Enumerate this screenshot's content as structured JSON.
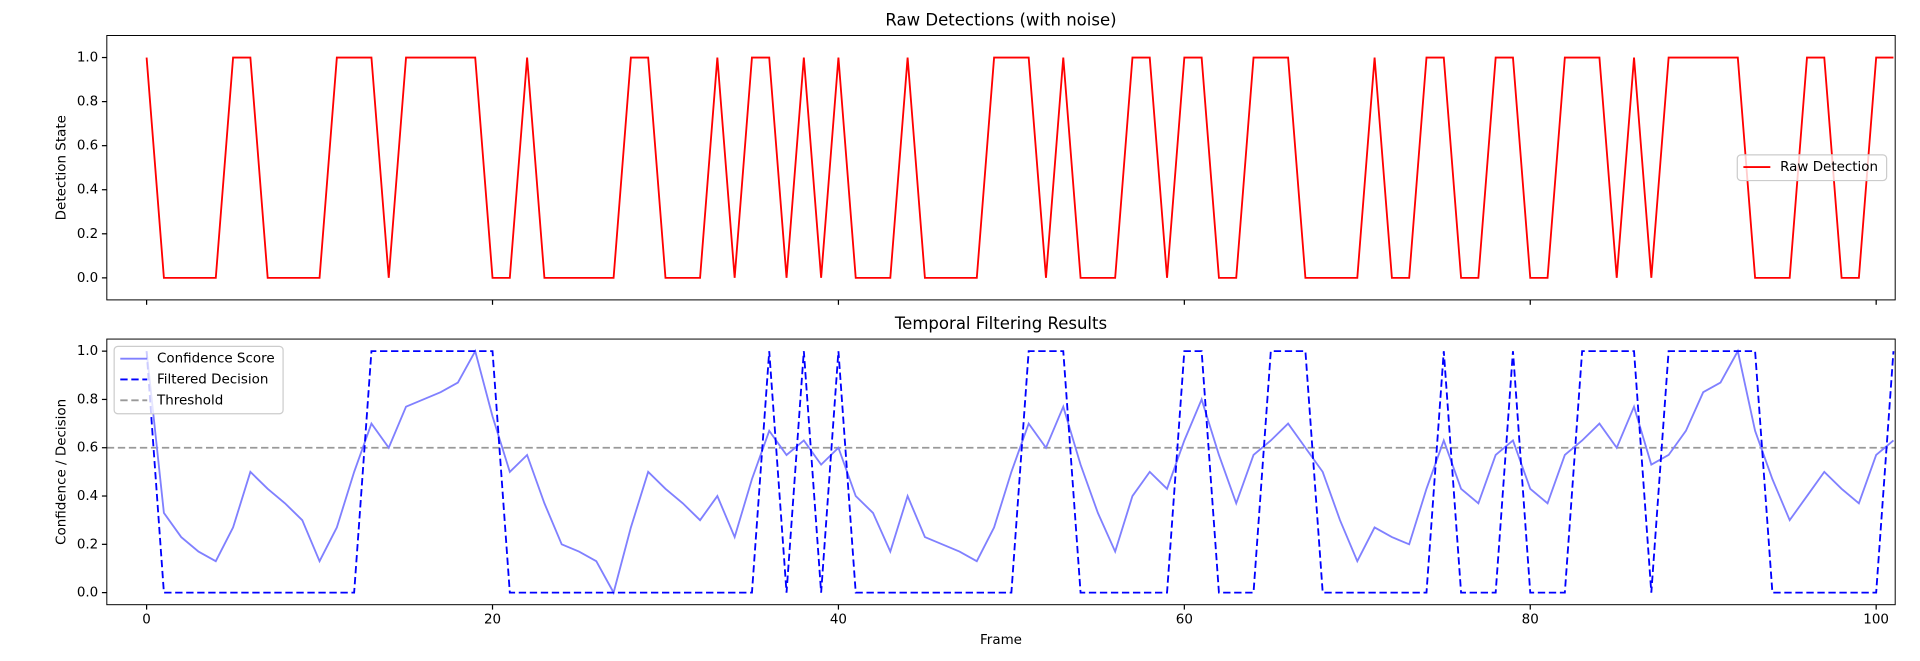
{
  "chart_data": [
    {
      "type": "line",
      "title": "Raw Detections (with noise)",
      "ylabel": "Detection State",
      "x": [
        0,
        1,
        2,
        3,
        4,
        5,
        6,
        7,
        8,
        9,
        10,
        11,
        12,
        13,
        14,
        15,
        16,
        17,
        18,
        19,
        20,
        21,
        22,
        23,
        24,
        25,
        26,
        27,
        28,
        29,
        30,
        31,
        32,
        33,
        34,
        35,
        36,
        37,
        38,
        39,
        40,
        41,
        42,
        43,
        44,
        45,
        46,
        47,
        48,
        49,
        50,
        51,
        52,
        53,
        54,
        55,
        56,
        57,
        58,
        59,
        60,
        61,
        62,
        63,
        64,
        65,
        66,
        67,
        68,
        69,
        70,
        71,
        72,
        73,
        74,
        75,
        76,
        77,
        78,
        79,
        80,
        81,
        82,
        83,
        84,
        85,
        86,
        87,
        88,
        89,
        90,
        91,
        92,
        93,
        94,
        95,
        96,
        97,
        98,
        99,
        100,
        101
      ],
      "series": [
        {
          "name": "Raw Detection",
          "color": "#ff0000",
          "dashed": false,
          "values": [
            1,
            0,
            0,
            0,
            0,
            1,
            1,
            0,
            0,
            0,
            0,
            1,
            1,
            1,
            0,
            1,
            1,
            1,
            1,
            1,
            0,
            0,
            1,
            0,
            0,
            0,
            0,
            0,
            1,
            1,
            0,
            0,
            0,
            1,
            0,
            1,
            1,
            0,
            1,
            0,
            1,
            0,
            0,
            0,
            1,
            0,
            0,
            0,
            0,
            1,
            1,
            1,
            0,
            1,
            0,
            0,
            0,
            1,
            1,
            0,
            1,
            1,
            0,
            0,
            1,
            1,
            1,
            0,
            0,
            0,
            0,
            1,
            0,
            0,
            1,
            1,
            0,
            0,
            1,
            1,
            0,
            0,
            1,
            1,
            1,
            0,
            1,
            0,
            1,
            1,
            1,
            1,
            1,
            0,
            0,
            0,
            1,
            1,
            0,
            0,
            1,
            1
          ]
        }
      ],
      "hlines": [],
      "xlim": [
        -2.3,
        101.1
      ],
      "ylim": [
        -0.1,
        1.1
      ],
      "xticks": [
        0,
        20,
        40,
        60,
        80,
        100
      ],
      "yticks": [
        0.0,
        0.2,
        0.4,
        0.6,
        0.8,
        1.0
      ],
      "show_xtick_labels": false,
      "legend": "center right"
    },
    {
      "type": "line",
      "title": "Temporal Filtering Results",
      "ylabel": "Confidence / Decision",
      "xlabel": "Frame",
      "x": [
        0,
        1,
        2,
        3,
        4,
        5,
        6,
        7,
        8,
        9,
        10,
        11,
        12,
        13,
        14,
        15,
        16,
        17,
        18,
        19,
        20,
        21,
        22,
        23,
        24,
        25,
        26,
        27,
        28,
        29,
        30,
        31,
        32,
        33,
        34,
        35,
        36,
        37,
        38,
        39,
        40,
        41,
        42,
        43,
        44,
        45,
        46,
        47,
        48,
        49,
        50,
        51,
        52,
        53,
        54,
        55,
        56,
        57,
        58,
        59,
        60,
        61,
        62,
        63,
        64,
        65,
        66,
        67,
        68,
        69,
        70,
        71,
        72,
        73,
        74,
        75,
        76,
        77,
        78,
        79,
        80,
        81,
        82,
        83,
        84,
        85,
        86,
        87,
        88,
        89,
        90,
        91,
        92,
        93,
        94,
        95,
        96,
        97,
        98,
        99,
        100,
        101
      ],
      "series": [
        {
          "name": "Confidence Score",
          "color": "#8080ff",
          "dashed": false,
          "values": [
            1.0,
            0.33,
            0.23,
            0.17,
            0.13,
            0.27,
            0.5,
            0.43,
            0.37,
            0.3,
            0.13,
            0.27,
            0.5,
            0.7,
            0.6,
            0.77,
            0.8,
            0.83,
            0.87,
            1.0,
            0.73,
            0.5,
            0.57,
            0.37,
            0.2,
            0.17,
            0.13,
            0.0,
            0.27,
            0.5,
            0.43,
            0.37,
            0.3,
            0.4,
            0.23,
            0.47,
            0.67,
            0.57,
            0.63,
            0.53,
            0.6,
            0.4,
            0.33,
            0.17,
            0.4,
            0.23,
            0.2,
            0.17,
            0.13,
            0.27,
            0.5,
            0.7,
            0.6,
            0.77,
            0.53,
            0.33,
            0.17,
            0.4,
            0.5,
            0.43,
            0.63,
            0.8,
            0.57,
            0.37,
            0.57,
            0.63,
            0.7,
            0.6,
            0.5,
            0.3,
            0.13,
            0.27,
            0.23,
            0.2,
            0.43,
            0.63,
            0.43,
            0.37,
            0.57,
            0.63,
            0.43,
            0.37,
            0.57,
            0.63,
            0.7,
            0.6,
            0.77,
            0.53,
            0.57,
            0.67,
            0.83,
            0.87,
            1.0,
            0.67,
            0.47,
            0.3,
            0.4,
            0.5,
            0.43,
            0.37,
            0.57,
            0.63
          ]
        },
        {
          "name": "Filtered Decision",
          "color": "#0000ff",
          "dashed": true,
          "values": [
            1,
            0,
            0,
            0,
            0,
            0,
            0,
            0,
            0,
            0,
            0,
            0,
            0,
            1,
            1,
            1,
            1,
            1,
            1,
            1,
            1,
            0,
            0,
            0,
            0,
            0,
            0,
            0,
            0,
            0,
            0,
            0,
            0,
            0,
            0,
            0,
            1,
            0,
            1,
            0,
            1,
            0,
            0,
            0,
            0,
            0,
            0,
            0,
            0,
            0,
            0,
            1,
            1,
            1,
            0,
            0,
            0,
            0,
            0,
            0,
            1,
            1,
            0,
            0,
            0,
            1,
            1,
            1,
            0,
            0,
            0,
            0,
            0,
            0,
            0,
            1,
            0,
            0,
            0,
            1,
            0,
            0,
            0,
            1,
            1,
            1,
            1,
            0,
            1,
            1,
            1,
            1,
            1,
            1,
            0,
            0,
            0,
            0,
            0,
            0,
            0,
            1
          ]
        }
      ],
      "hlines": [
        {
          "name": "Threshold",
          "value": 0.6,
          "color": "#999999",
          "dashed": true
        }
      ],
      "xlim": [
        -2.3,
        101.1
      ],
      "ylim": [
        -0.05,
        1.05
      ],
      "xticks": [
        0,
        20,
        40,
        60,
        80,
        100
      ],
      "yticks": [
        0.0,
        0.2,
        0.4,
        0.6,
        0.8,
        1.0
      ],
      "show_xtick_labels": true,
      "legend": "upper left"
    }
  ]
}
